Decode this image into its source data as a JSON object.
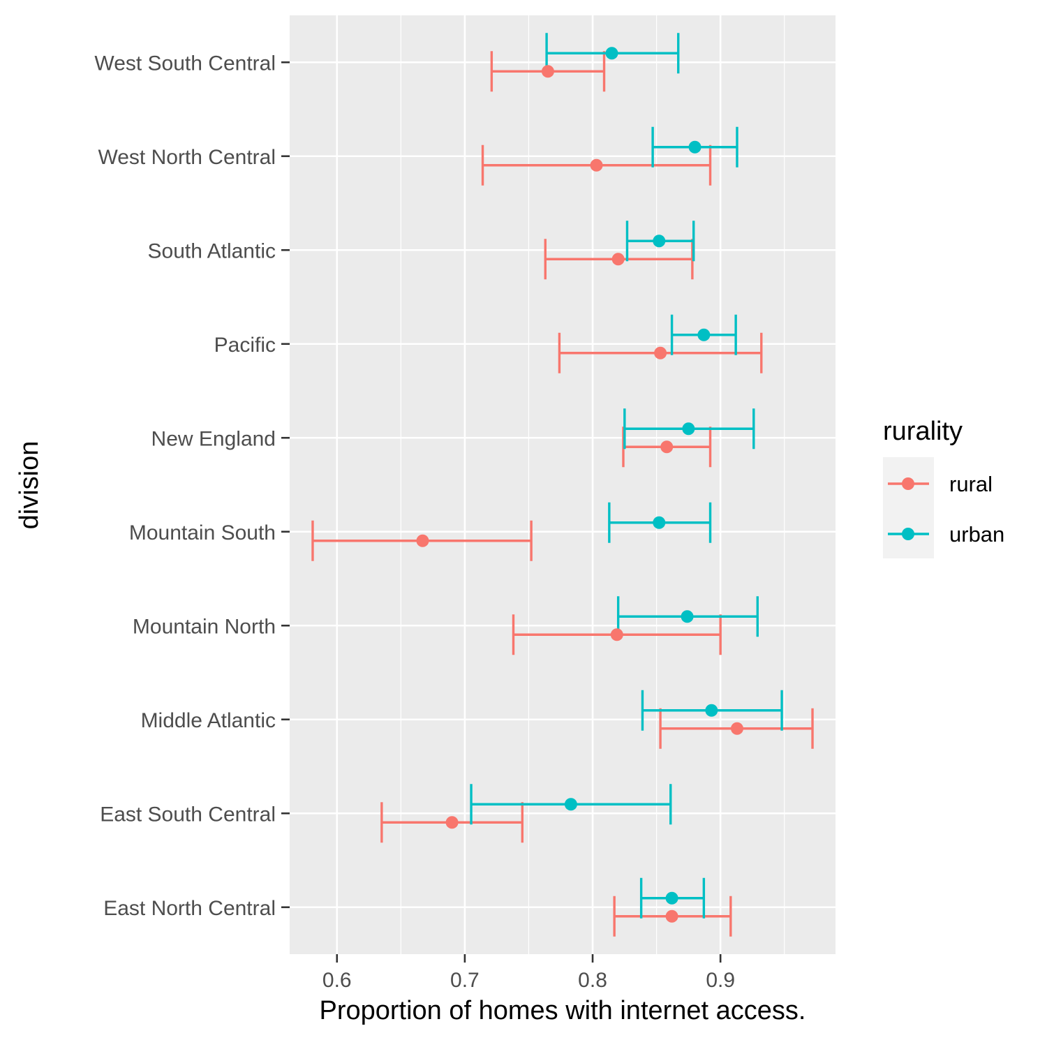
{
  "chart_data": {
    "type": "errorbar",
    "title": "",
    "xlabel": "Proportion of homes with internet access.",
    "ylabel": "division",
    "xlim": [
      0.563,
      0.99
    ],
    "x_ticks": [
      0.6,
      0.7,
      0.8,
      0.9
    ],
    "x_tick_labels": [
      "0.6",
      "0.7",
      "0.8",
      "0.9"
    ],
    "grid": true,
    "legend": {
      "title": "rurality",
      "position": "right",
      "entries": [
        "rural",
        "urban"
      ]
    },
    "categories": [
      "East North Central",
      "East South Central",
      "Middle Atlantic",
      "Mountain North",
      "Mountain South",
      "New England",
      "Pacific",
      "South Atlantic",
      "West North Central",
      "West South Central"
    ],
    "series": [
      {
        "name": "rural",
        "color": "#F8766D",
        "points": [
          {
            "estimate": 0.862,
            "low": 0.817,
            "high": 0.908
          },
          {
            "estimate": 0.69,
            "low": 0.635,
            "high": 0.745
          },
          {
            "estimate": 0.913,
            "low": 0.853,
            "high": 0.972
          },
          {
            "estimate": 0.819,
            "low": 0.738,
            "high": 0.9
          },
          {
            "estimate": 0.667,
            "low": 0.581,
            "high": 0.752
          },
          {
            "estimate": 0.858,
            "low": 0.824,
            "high": 0.892
          },
          {
            "estimate": 0.853,
            "low": 0.774,
            "high": 0.932
          },
          {
            "estimate": 0.82,
            "low": 0.763,
            "high": 0.878
          },
          {
            "estimate": 0.803,
            "low": 0.714,
            "high": 0.892
          },
          {
            "estimate": 0.765,
            "low": 0.721,
            "high": 0.809
          }
        ]
      },
      {
        "name": "urban",
        "color": "#00BFC4",
        "points": [
          {
            "estimate": 0.862,
            "low": 0.838,
            "high": 0.887
          },
          {
            "estimate": 0.783,
            "low": 0.705,
            "high": 0.861
          },
          {
            "estimate": 0.893,
            "low": 0.839,
            "high": 0.948
          },
          {
            "estimate": 0.874,
            "low": 0.82,
            "high": 0.929
          },
          {
            "estimate": 0.852,
            "low": 0.813,
            "high": 0.892
          },
          {
            "estimate": 0.875,
            "low": 0.825,
            "high": 0.926
          },
          {
            "estimate": 0.887,
            "low": 0.862,
            "high": 0.912
          },
          {
            "estimate": 0.852,
            "low": 0.827,
            "high": 0.879
          },
          {
            "estimate": 0.88,
            "low": 0.847,
            "high": 0.913
          },
          {
            "estimate": 0.815,
            "low": 0.764,
            "high": 0.867
          }
        ]
      }
    ]
  }
}
